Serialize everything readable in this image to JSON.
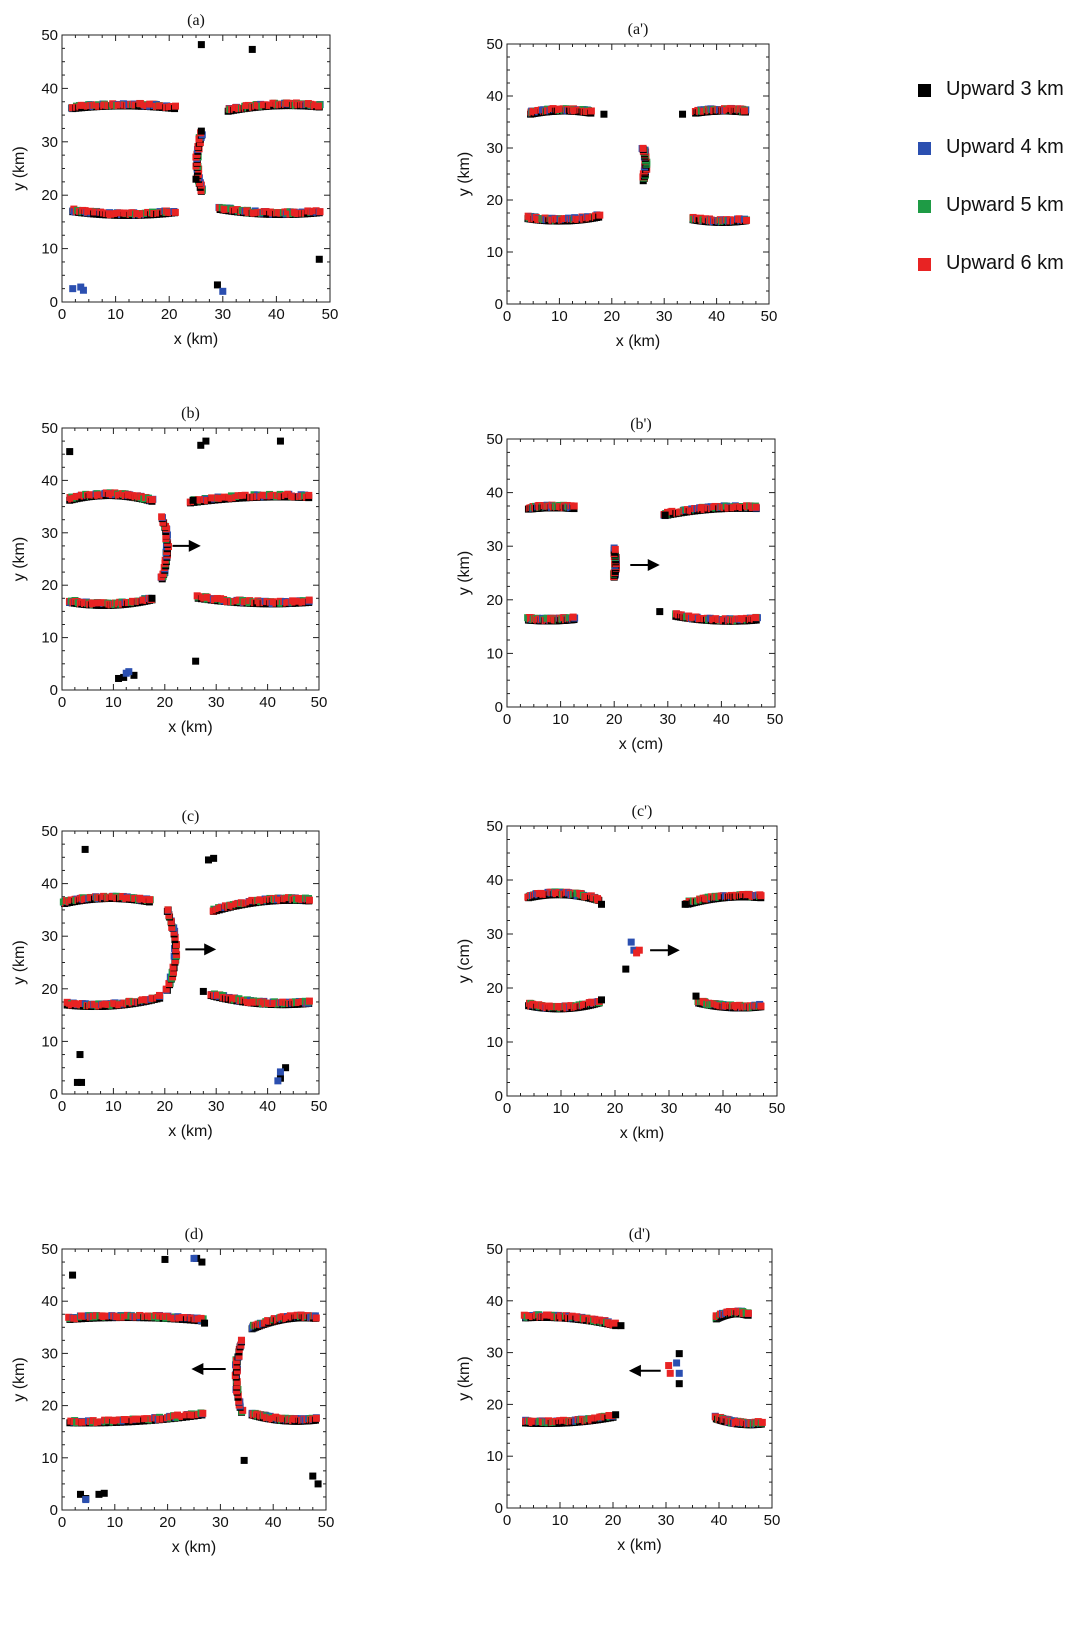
{
  "legend": {
    "items": [
      {
        "label": "Upward 3 km",
        "color": "#000000"
      },
      {
        "label": "Upward 4 km",
        "color": "#2b4fb0"
      },
      {
        "label": "Upward 5 km",
        "color": "#1e9b45"
      },
      {
        "label": "Upward 6 km",
        "color": "#e82323"
      }
    ]
  },
  "chart_data": [
    {
      "type": "scatter",
      "title": "(a)",
      "xlabel": "x (km)",
      "ylabel": "y (km)",
      "xlim": [
        0,
        50
      ],
      "ylim": [
        0,
        50
      ],
      "xticks": [
        "0",
        "10",
        "20",
        "30",
        "40",
        "50"
      ],
      "yticks": [
        "0",
        "10",
        "20",
        "30",
        "40",
        "50"
      ],
      "arrow": null,
      "series": [
        {
          "name": "Upward 3 km",
          "points": [
            [
              26,
              48.2
            ],
            [
              35.5,
              47.3
            ],
            [
              48,
              8
            ],
            [
              29,
              3.2
            ],
            [
              25,
              23
            ],
            [
              26,
              32
            ]
          ]
        },
        {
          "name": "Upward 4 km",
          "points": [
            [
              2,
              2.5
            ],
            [
              3.5,
              2.8
            ],
            [
              4,
              2.2
            ],
            [
              30,
              2
            ]
          ]
        }
      ],
      "arcs": [
        {
          "x": [
            2,
            21
          ],
          "y_start": 36.5,
          "y_end": 36.5,
          "bulge": 0.5
        },
        {
          "x": [
            31,
            48
          ],
          "y_start": 36,
          "y_end": 36.8,
          "bulge": 0.6
        },
        {
          "x": [
            2,
            21
          ],
          "y_start": 17.2,
          "y_end": 17,
          "bulge": -0.6
        },
        {
          "x": [
            29.5,
            48
          ],
          "y_start": 17.6,
          "y_end": 17,
          "bulge": -0.6
        },
        {
          "x": [
            26,
            26
          ],
          "y_start": 21,
          "y_end": 31.5,
          "bulge": -0.8
        }
      ]
    },
    {
      "type": "scatter",
      "title": "(a')",
      "xlabel": "x (km)",
      "ylabel": "y (km)",
      "xlim": [
        0,
        50
      ],
      "ylim": [
        0,
        50
      ],
      "xticks": [
        "0",
        "10",
        "20",
        "30",
        "40",
        "50"
      ],
      "yticks": [
        "0",
        "10",
        "20",
        "30",
        "40",
        "50"
      ],
      "arrow": null,
      "series": [
        {
          "name": "Upward 3 km",
          "points": [
            [
              18.5,
              36.5
            ],
            [
              33.5,
              36.5
            ]
          ]
        }
      ],
      "arcs": [
        {
          "x": [
            4.5,
            16
          ],
          "y_start": 36.8,
          "y_end": 37,
          "bulge": 0.5
        },
        {
          "x": [
            36,
            45.5
          ],
          "y_start": 37,
          "y_end": 37.2,
          "bulge": 0.3
        },
        {
          "x": [
            4,
            17.5
          ],
          "y_start": 16.7,
          "y_end": 17,
          "bulge": -0.6
        },
        {
          "x": [
            35.5,
            45.5
          ],
          "y_start": 16.5,
          "y_end": 16.3,
          "bulge": -0.4
        },
        {
          "x": [
            26,
            26
          ],
          "y_start": 24,
          "y_end": 30,
          "bulge": 0.5
        }
      ]
    },
    {
      "type": "scatter",
      "title": "(b)",
      "xlabel": "x (km)",
      "ylabel": "y (km)",
      "xlim": [
        0,
        50
      ],
      "ylim": [
        0,
        50
      ],
      "xticks": [
        "0",
        "10",
        "20",
        "30",
        "40",
        "50"
      ],
      "yticks": [
        "0",
        "10",
        "20",
        "30",
        "40",
        "50"
      ],
      "arrow": {
        "x1": 21.5,
        "x2": 27,
        "y": 27.5
      },
      "series": [
        {
          "name": "Upward 3 km",
          "points": [
            [
              1.5,
              45.5
            ],
            [
              27,
              46.7
            ],
            [
              28,
              47.5
            ],
            [
              42.5,
              47.5
            ],
            [
              26,
              5.5
            ],
            [
              11,
              2.2
            ],
            [
              12,
              2.4
            ],
            [
              14,
              2.8
            ],
            [
              17.5,
              17.5
            ],
            [
              25.5,
              36.2
            ]
          ]
        },
        {
          "name": "Upward 4 km",
          "points": [
            [
              12.5,
              3.2
            ],
            [
              13,
              3.5
            ]
          ]
        }
      ],
      "arcs": [
        {
          "x": [
            1.5,
            17.5
          ],
          "y_start": 36.5,
          "y_end": 36.3,
          "bulge": 1.0
        },
        {
          "x": [
            25,
            48
          ],
          "y_start": 36,
          "y_end": 37,
          "bulge": 0.5
        },
        {
          "x": [
            1.5,
            17.5
          ],
          "y_start": 17,
          "y_end": 17.5,
          "bulge": -0.8
        },
        {
          "x": [
            26.5,
            48
          ],
          "y_start": 17.8,
          "y_end": 17,
          "bulge": -0.6
        },
        {
          "x": [
            19.5,
            19.5
          ],
          "y_start": 21.5,
          "y_end": 33,
          "bulge": 1.0
        }
      ]
    },
    {
      "type": "scatter",
      "title": "(b')",
      "xlabel": "x (cm)",
      "ylabel": "y (km)",
      "xlim": [
        0,
        50
      ],
      "ylim": [
        0,
        50
      ],
      "xticks": [
        "0",
        "10",
        "20",
        "30",
        "40",
        "50"
      ],
      "yticks": [
        "0",
        "10",
        "20",
        "30",
        "40",
        "50"
      ],
      "arrow": {
        "x1": 23,
        "x2": 28.5,
        "y": 26.5
      },
      "series": [
        {
          "name": "Upward 3 km",
          "points": [
            [
              28.5,
              17.8
            ],
            [
              29.5,
              35.8
            ]
          ]
        }
      ],
      "arcs": [
        {
          "x": [
            4,
            12.5
          ],
          "y_start": 37.2,
          "y_end": 37.3,
          "bulge": 0.2
        },
        {
          "x": [
            29.5,
            46.5
          ],
          "y_start": 36,
          "y_end": 37.3,
          "bulge": 0.5
        },
        {
          "x": [
            4,
            12.5
          ],
          "y_start": 16.5,
          "y_end": 16.6,
          "bulge": -0.2
        },
        {
          "x": [
            31.5,
            46.5
          ],
          "y_start": 17.2,
          "y_end": 16.5,
          "bulge": -0.5
        },
        {
          "x": [
            20,
            20
          ],
          "y_start": 24.5,
          "y_end": 29.5,
          "bulge": 0.3
        }
      ]
    },
    {
      "type": "scatter",
      "title": "(c)",
      "xlabel": "x (km)",
      "ylabel": "y (km)",
      "xlim": [
        0,
        50
      ],
      "ylim": [
        0,
        50
      ],
      "xticks": [
        "0",
        "10",
        "20",
        "30",
        "40",
        "50"
      ],
      "yticks": [
        "0",
        "10",
        "20",
        "30",
        "40",
        "50"
      ],
      "arrow": {
        "x1": 24,
        "x2": 30,
        "y": 27.5
      },
      "series": [
        {
          "name": "Upward 3 km",
          "points": [
            [
              4.5,
              46.5
            ],
            [
              28.5,
              44.5
            ],
            [
              29.5,
              44.8
            ],
            [
              3.5,
              7.5
            ],
            [
              3,
              2.2
            ],
            [
              3.8,
              2.2
            ],
            [
              27.5,
              19.5
            ],
            [
              43.5,
              5
            ],
            [
              42.5,
              3
            ]
          ]
        },
        {
          "name": "Upward 4 km",
          "points": [
            [
              42.5,
              4.2
            ],
            [
              42,
              2.5
            ]
          ]
        }
      ],
      "arcs": [
        {
          "x": [
            0.5,
            17
          ],
          "y_start": 36.5,
          "y_end": 36.8,
          "bulge": 0.8
        },
        {
          "x": [
            29.5,
            48
          ],
          "y_start": 35,
          "y_end": 37,
          "bulge": 0.8
        },
        {
          "x": [
            1,
            19
          ],
          "y_start": 17.2,
          "y_end": 18.5,
          "bulge": -0.8
        },
        {
          "x": [
            29,
            48
          ],
          "y_start": 19,
          "y_end": 17.5,
          "bulge": -0.8
        },
        {
          "x": [
            20.5,
            20.5
          ],
          "y_start": 20,
          "y_end": 35,
          "bulge": 1.6
        }
      ]
    },
    {
      "type": "scatter",
      "title": "(c')",
      "xlabel": "x (km)",
      "ylabel": "y (cm)",
      "xlim": [
        0,
        50
      ],
      "ylim": [
        0,
        50
      ],
      "xticks": [
        "0",
        "10",
        "20",
        "30",
        "40",
        "50"
      ],
      "yticks": [
        "0",
        "10",
        "20",
        "30",
        "40",
        "50"
      ],
      "arrow": {
        "x1": 26.5,
        "x2": 32,
        "y": 27
      },
      "series": [
        {
          "name": "Upward 3 km",
          "points": [
            [
              17.5,
              35.5
            ],
            [
              17.5,
              17.8
            ],
            [
              22,
              23.5
            ],
            [
              33,
              35.5
            ],
            [
              35,
              18.5
            ]
          ]
        },
        {
          "name": "Upward 4 km",
          "points": [
            [
              23,
              28.5
            ],
            [
              23.5,
              27
            ]
          ]
        },
        {
          "name": "Upward 6 km",
          "points": [
            [
              24.5,
              27
            ],
            [
              24,
              26.5
            ]
          ]
        }
      ],
      "arcs": [
        {
          "x": [
            4,
            17
          ],
          "y_start": 37,
          "y_end": 36.5,
          "bulge": 0.8
        },
        {
          "x": [
            33.5,
            47
          ],
          "y_start": 35.8,
          "y_end": 37,
          "bulge": 0.6
        },
        {
          "x": [
            4,
            17
          ],
          "y_start": 17,
          "y_end": 17.5,
          "bulge": -0.8
        },
        {
          "x": [
            35.5,
            47
          ],
          "y_start": 17.5,
          "y_end": 16.8,
          "bulge": -0.5
        }
      ]
    },
    {
      "type": "scatter",
      "title": "(d)",
      "xlabel": "x (km)",
      "ylabel": "y (km)",
      "xlim": [
        0,
        50
      ],
      "ylim": [
        0,
        50
      ],
      "xticks": [
        "0",
        "10",
        "20",
        "30",
        "40",
        "50"
      ],
      "yticks": [
        "0",
        "10",
        "20",
        "30",
        "40",
        "50"
      ],
      "arrow": {
        "x1": 31,
        "x2": 24.5,
        "y": 27
      },
      "series": [
        {
          "name": "Upward 3 km",
          "points": [
            [
              2,
              45
            ],
            [
              19.5,
              48
            ],
            [
              25.5,
              48.2
            ],
            [
              26.5,
              47.5
            ],
            [
              27,
              35.8
            ],
            [
              34.5,
              9.5
            ],
            [
              47.5,
              6.5
            ],
            [
              48.5,
              5
            ],
            [
              3.5,
              3
            ],
            [
              4.5,
              2.2
            ],
            [
              7,
              3
            ],
            [
              8,
              3.2
            ]
          ]
        },
        {
          "name": "Upward 4 km",
          "points": [
            [
              25,
              48.2
            ],
            [
              4.5,
              2
            ]
          ]
        }
      ],
      "arcs": [
        {
          "x": [
            1.5,
            26.5
          ],
          "y_start": 36.8,
          "y_end": 36.5,
          "bulge": 0.5
        },
        {
          "x": [
            36,
            48
          ],
          "y_start": 35,
          "y_end": 37,
          "bulge": 0.8
        },
        {
          "x": [
            1.5,
            26.5
          ],
          "y_start": 17,
          "y_end": 18.5,
          "bulge": -0.5
        },
        {
          "x": [
            36,
            48
          ],
          "y_start": 18.5,
          "y_end": 17.5,
          "bulge": -0.6
        },
        {
          "x": [
            34,
            34
          ],
          "y_start": 19,
          "y_end": 32.5,
          "bulge": -1.0
        }
      ]
    },
    {
      "type": "scatter",
      "title": "(d')",
      "xlabel": "x (km)",
      "ylabel": "y (km)",
      "xlim": [
        0,
        50
      ],
      "ylim": [
        0,
        50
      ],
      "xticks": [
        "0",
        "10",
        "20",
        "30",
        "40",
        "50"
      ],
      "yticks": [
        "0",
        "10",
        "20",
        "30",
        "40",
        "50"
      ],
      "arrow": {
        "x1": 29,
        "x2": 23,
        "y": 26.5
      },
      "series": [
        {
          "name": "Upward 3 km",
          "points": [
            [
              21.5,
              35.2
            ],
            [
              20.5,
              18
            ],
            [
              32.5,
              24
            ],
            [
              32.5,
              29.8
            ]
          ]
        },
        {
          "name": "Upward 4 km",
          "points": [
            [
              32,
              28
            ],
            [
              32.5,
              26
            ]
          ]
        },
        {
          "name": "Upward 6 km",
          "points": [
            [
              30.5,
              27.5
            ],
            [
              30.8,
              26
            ]
          ]
        }
      ],
      "arcs": [
        {
          "x": [
            3.5,
            20.5
          ],
          "y_start": 37,
          "y_end": 35.5,
          "bulge": 0.6
        },
        {
          "x": [
            39.5,
            45.5
          ],
          "y_start": 36.8,
          "y_end": 37.5,
          "bulge": 0.6
        },
        {
          "x": [
            3.5,
            20
          ],
          "y_start": 16.7,
          "y_end": 17.8,
          "bulge": -0.5
        },
        {
          "x": [
            39.5,
            48
          ],
          "y_start": 17.5,
          "y_end": 16.5,
          "bulge": -0.5
        }
      ]
    }
  ]
}
